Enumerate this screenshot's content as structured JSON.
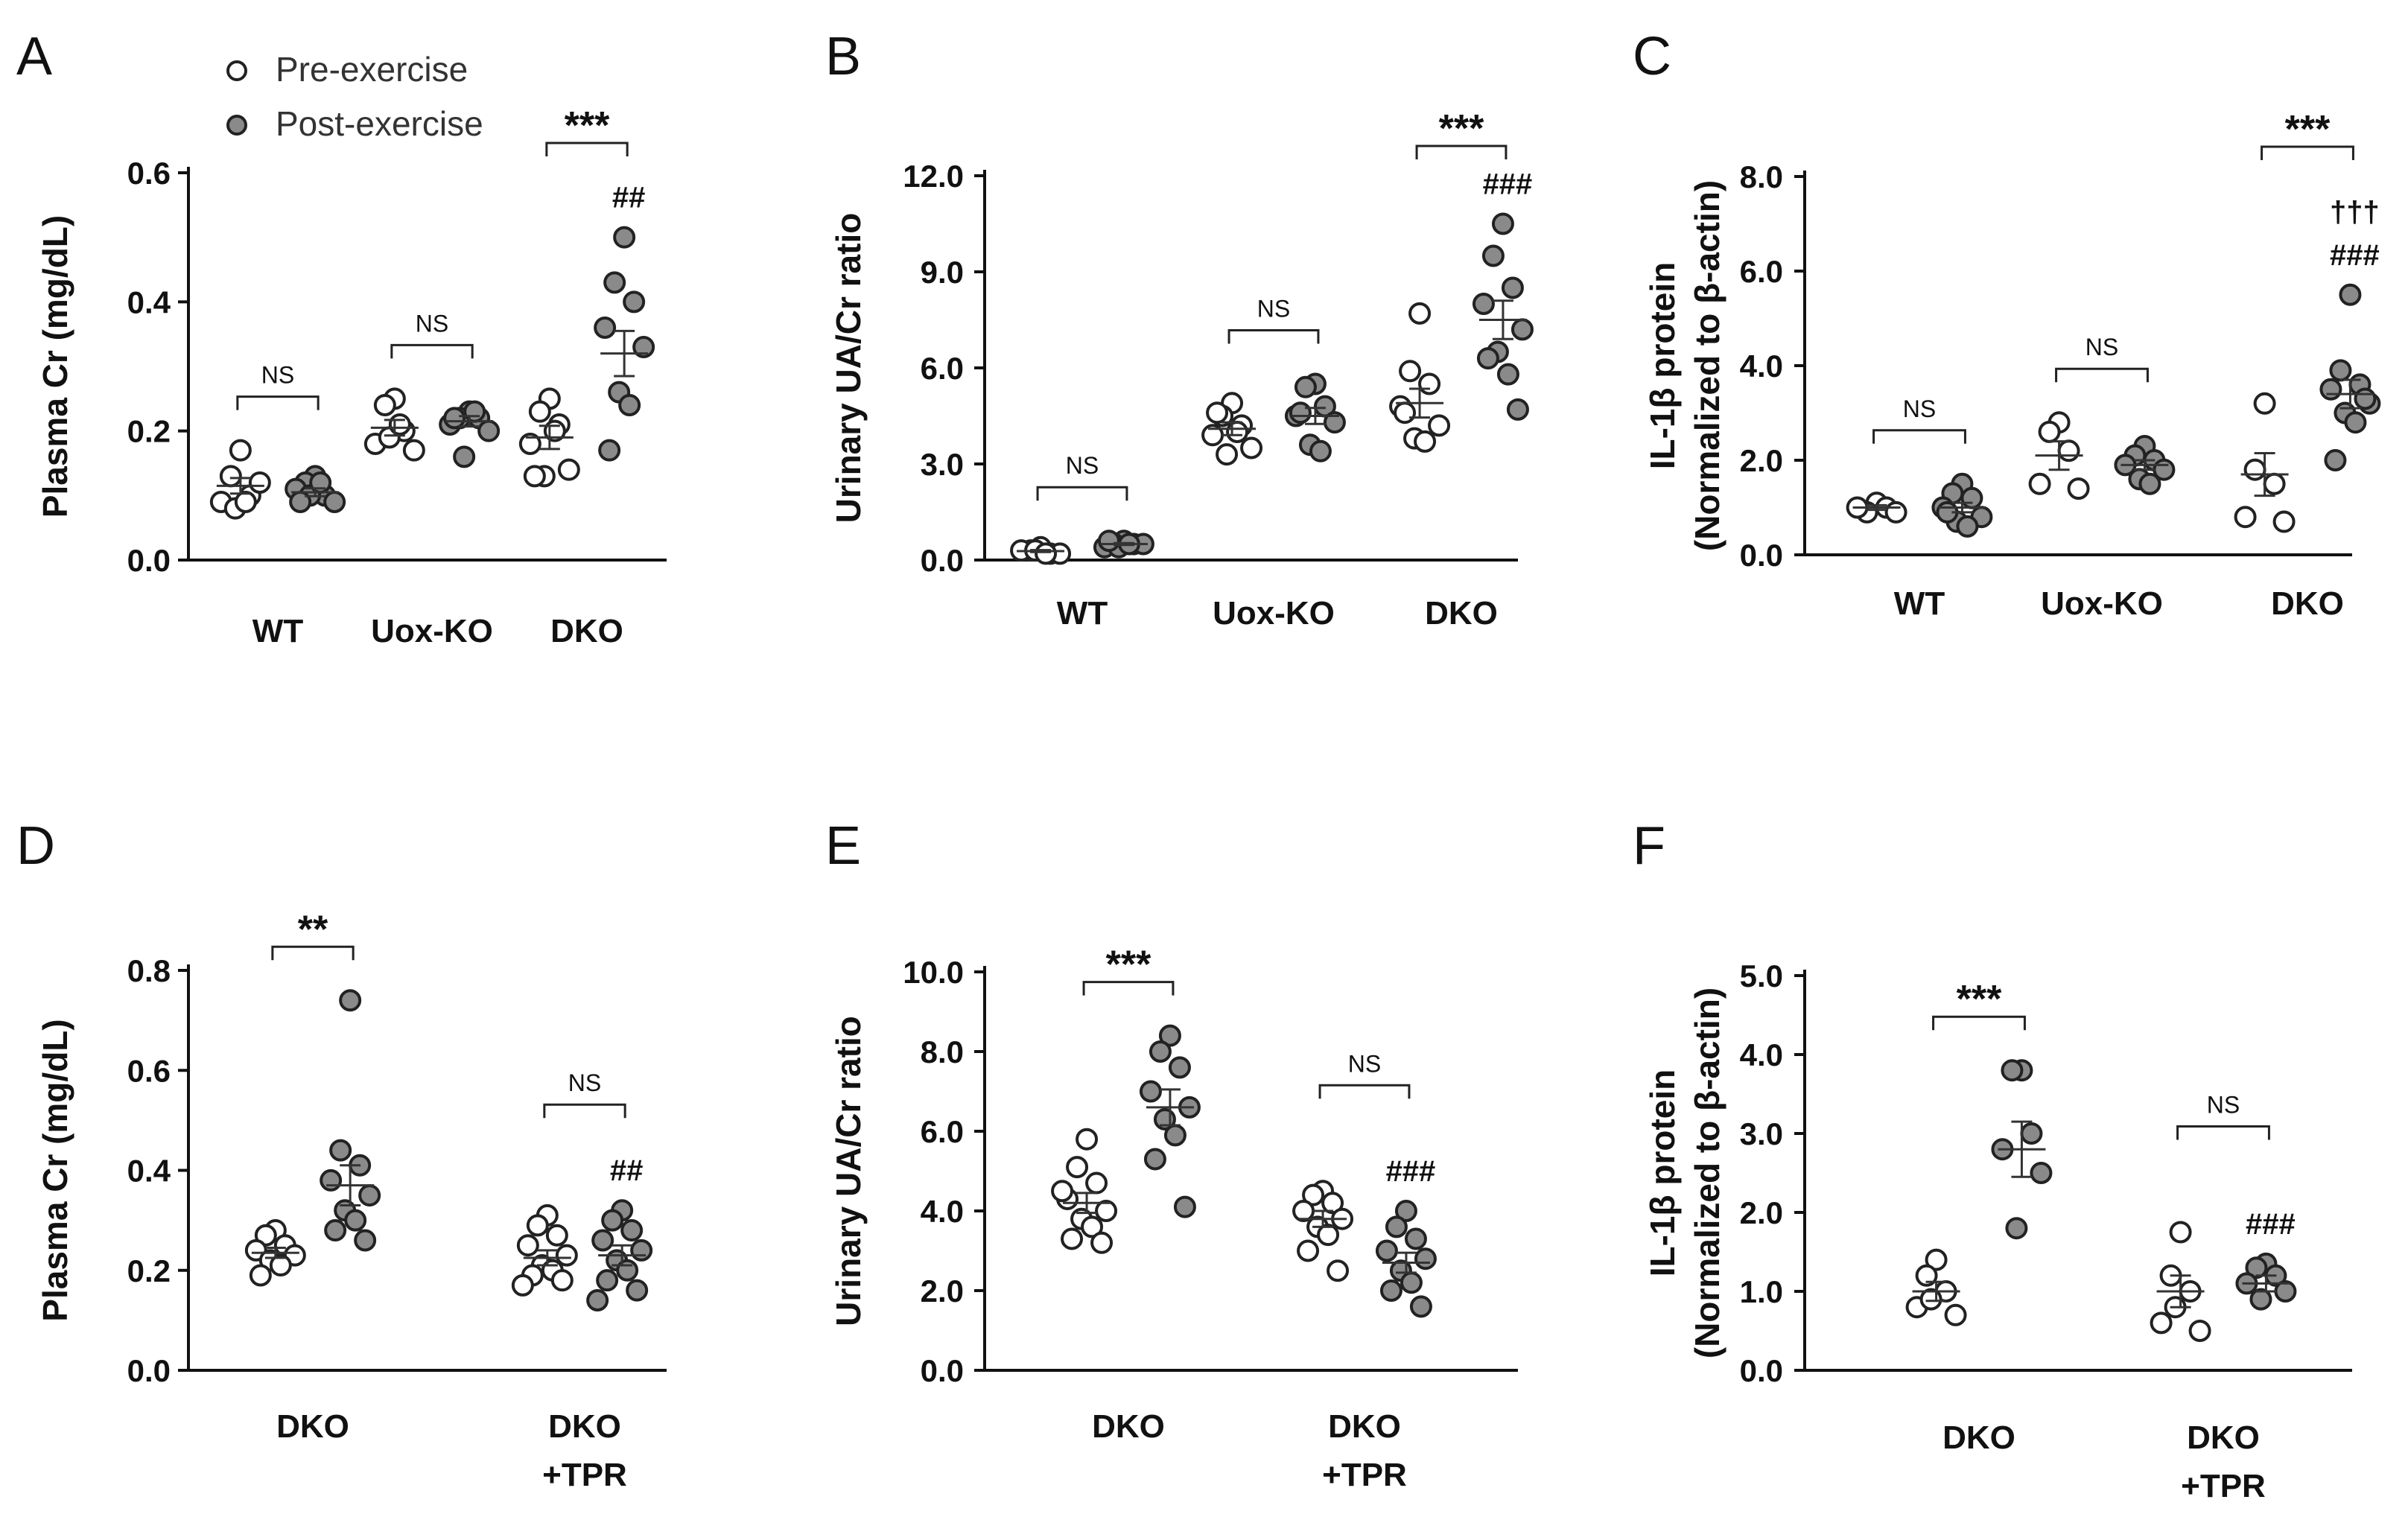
{
  "legend": {
    "pre_label": "Pre-exercise",
    "post_label": "Post-exercise",
    "pre_fill": "#ffffff",
    "post_fill": "#8a8a8a"
  },
  "chart_data": [
    {
      "panel": "A",
      "type": "scatter",
      "ylabel": "Plasma Cr (mg/dL)",
      "ylabel2": "",
      "ylim": [
        0,
        0.6
      ],
      "yticks": [
        "0.0",
        "0.2",
        "0.4",
        "0.6"
      ],
      "groups": [
        {
          "label": "WT",
          "label2": "",
          "pre": [
            0.17,
            0.13,
            0.1,
            0.09,
            0.12,
            0.08,
            0.09
          ],
          "post": [
            0.13,
            0.12,
            0.1,
            0.11,
            0.09,
            0.1,
            0.12,
            0.09
          ],
          "pre_mean": 0.115,
          "pre_sem": 0.012,
          "post_mean": 0.105,
          "post_sem": 0.006,
          "sig": "NS",
          "post_mark": []
        },
        {
          "label": "Uox-KO",
          "label2": "",
          "pre": [
            0.25,
            0.24,
            0.2,
            0.18,
            0.17,
            0.19,
            0.21
          ],
          "post": [
            0.23,
            0.22,
            0.22,
            0.21,
            0.2,
            0.16,
            0.23,
            0.22
          ],
          "pre_mean": 0.205,
          "pre_sem": 0.012,
          "post_mean": 0.215,
          "post_sem": 0.008,
          "sig": "NS",
          "post_mark": []
        },
        {
          "label": "DKO",
          "label2": "",
          "pre": [
            0.25,
            0.23,
            0.21,
            0.18,
            0.14,
            0.13,
            0.2,
            0.13
          ],
          "post": [
            0.5,
            0.43,
            0.4,
            0.36,
            0.33,
            0.26,
            0.24,
            0.17
          ],
          "pre_mean": 0.19,
          "pre_sem": 0.018,
          "post_mean": 0.32,
          "post_sem": 0.035,
          "sig": "***",
          "post_mark": [
            "##"
          ]
        }
      ]
    },
    {
      "panel": "B",
      "type": "scatter",
      "ylabel": "Urinary UA/Cr ratio",
      "ylabel2": "",
      "ylim": [
        0,
        12
      ],
      "yticks": [
        "0.0",
        "3.0",
        "6.0",
        "9.0",
        "12.0"
      ],
      "groups": [
        {
          "label": "WT",
          "label2": "",
          "pre": [
            0.4,
            0.3,
            0.2,
            0.3,
            0.2,
            0.3,
            0.2
          ],
          "post": [
            0.6,
            0.5,
            0.5,
            0.4,
            0.5,
            0.4,
            0.5,
            0.6
          ],
          "pre_mean": 0.28,
          "pre_sem": 0.03,
          "post_mean": 0.5,
          "post_sem": 0.03,
          "sig": "NS",
          "post_mark": []
        },
        {
          "label": "Uox-KO",
          "label2": "",
          "pre": [
            4.9,
            4.5,
            4.2,
            3.9,
            3.5,
            3.3,
            4.0,
            4.6
          ],
          "post": [
            5.5,
            5.4,
            4.8,
            4.5,
            4.3,
            3.6,
            3.4,
            4.6
          ],
          "pre_mean": 4.1,
          "pre_sem": 0.2,
          "post_mean": 4.5,
          "post_sem": 0.25,
          "sig": "NS",
          "post_mark": []
        },
        {
          "label": "DKO",
          "label2": "",
          "pre": [
            7.7,
            5.9,
            5.5,
            4.8,
            4.2,
            3.8,
            3.7,
            4.6
          ],
          "post": [
            10.5,
            9.5,
            8.5,
            8.0,
            7.2,
            6.5,
            5.8,
            6.3,
            4.7
          ],
          "pre_mean": 4.9,
          "pre_sem": 0.45,
          "post_mean": 7.5,
          "post_sem": 0.6,
          "sig": "***",
          "post_mark": [
            "###"
          ]
        }
      ]
    },
    {
      "panel": "C",
      "type": "scatter",
      "ylabel": "IL-1β protein",
      "ylabel2": "(Normalized to β-actin)",
      "ylim": [
        0,
        8
      ],
      "yticks": [
        "0.0",
        "2.0",
        "4.0",
        "6.0",
        "8.0"
      ],
      "groups": [
        {
          "label": "WT",
          "label2": "",
          "pre": [
            1.1,
            0.9,
            1.0,
            1.0,
            0.9
          ],
          "post": [
            1.5,
            1.3,
            1.2,
            1.0,
            0.8,
            0.7,
            0.6,
            0.9
          ],
          "pre_mean": 1.0,
          "pre_sem": 0.05,
          "post_mean": 1.0,
          "post_sem": 0.1,
          "sig": "NS",
          "post_mark": []
        },
        {
          "label": "Uox-KO",
          "label2": "",
          "pre": [
            2.8,
            2.6,
            2.2,
            1.5,
            1.4
          ],
          "post": [
            2.3,
            2.1,
            2.0,
            1.9,
            1.8,
            1.6,
            1.5
          ],
          "pre_mean": 2.1,
          "pre_sem": 0.3,
          "post_mean": 1.9,
          "post_sem": 0.1,
          "sig": "NS",
          "post_mark": []
        },
        {
          "label": "DKO",
          "label2": "",
          "pre": [
            3.2,
            1.8,
            1.5,
            0.8,
            0.7
          ],
          "post": [
            5.5,
            3.9,
            3.6,
            3.5,
            3.2,
            3.0,
            2.8,
            2.0,
            3.3
          ],
          "pre_mean": 1.7,
          "pre_sem": 0.45,
          "post_mean": 3.4,
          "post_sem": 0.3,
          "sig": "***",
          "post_mark": [
            "†††",
            "###"
          ]
        }
      ]
    },
    {
      "panel": "D",
      "type": "scatter",
      "ylabel": "Plasma Cr (mg/dL)",
      "ylabel2": "",
      "ylim": [
        0,
        0.8
      ],
      "yticks": [
        "0.0",
        "0.2",
        "0.4",
        "0.6",
        "0.8"
      ],
      "groups": [
        {
          "label": "DKO",
          "label2": "",
          "pre": [
            0.28,
            0.27,
            0.25,
            0.24,
            0.23,
            0.22,
            0.21,
            0.19
          ],
          "post": [
            0.74,
            0.44,
            0.41,
            0.38,
            0.35,
            0.32,
            0.3,
            0.28,
            0.26
          ],
          "pre_mean": 0.235,
          "pre_sem": 0.01,
          "post_mean": 0.37,
          "post_sem": 0.04,
          "sig": "**",
          "post_mark": []
        },
        {
          "label": "DKO",
          "label2": "+TPR",
          "pre": [
            0.31,
            0.29,
            0.27,
            0.25,
            0.23,
            0.21,
            0.2,
            0.19,
            0.18,
            0.17
          ],
          "post": [
            0.32,
            0.3,
            0.28,
            0.26,
            0.24,
            0.22,
            0.2,
            0.18,
            0.16,
            0.14
          ],
          "pre_mean": 0.225,
          "pre_sem": 0.015,
          "post_mean": 0.23,
          "post_sem": 0.02,
          "sig": "NS",
          "post_mark": [
            "##"
          ]
        }
      ]
    },
    {
      "panel": "E",
      "type": "scatter",
      "ylabel": "Urinary UA/Cr ratio",
      "ylabel2": "",
      "ylim": [
        0,
        10
      ],
      "yticks": [
        "0.0",
        "2.0",
        "4.0",
        "6.0",
        "8.0",
        "10.0"
      ],
      "groups": [
        {
          "label": "DKO",
          "label2": "",
          "pre": [
            5.8,
            5.1,
            4.7,
            4.3,
            4.0,
            3.8,
            3.6,
            3.3,
            3.2,
            4.5
          ],
          "post": [
            8.4,
            8.0,
            7.6,
            7.0,
            6.6,
            6.3,
            5.9,
            5.3,
            4.1
          ],
          "pre_mean": 4.2,
          "pre_sem": 0.25,
          "post_mean": 6.6,
          "post_sem": 0.45,
          "sig": "***",
          "post_mark": []
        },
        {
          "label": "DKO",
          "label2": "+TPR",
          "pre": [
            4.5,
            4.4,
            4.2,
            4.0,
            3.8,
            3.6,
            3.4,
            3.0,
            2.5
          ],
          "post": [
            4.0,
            3.6,
            3.3,
            3.0,
            2.8,
            2.5,
            2.2,
            2.0,
            1.6
          ],
          "pre_mean": 3.8,
          "pre_sem": 0.2,
          "post_mean": 2.7,
          "post_sem": 0.25,
          "sig": "NS",
          "post_mark": [
            "###"
          ]
        }
      ]
    },
    {
      "panel": "F",
      "type": "scatter",
      "ylabel": "IL-1β protein",
      "ylabel2": "(Normalized to β-actin)",
      "ylim": [
        0,
        5
      ],
      "yticks": [
        "0.0",
        "1.0",
        "2.0",
        "3.0",
        "4.0",
        "5.0"
      ],
      "groups": [
        {
          "label": "DKO",
          "label2": "",
          "pre": [
            1.4,
            1.2,
            1.0,
            0.8,
            0.7,
            0.9
          ],
          "post": [
            3.8,
            3.8,
            3.0,
            2.8,
            2.5,
            1.8
          ],
          "pre_mean": 1.0,
          "pre_sem": 0.12,
          "post_mean": 2.8,
          "post_sem": 0.35,
          "sig": "***",
          "post_mark": []
        },
        {
          "label": "DKO",
          "label2": "+TPR",
          "pre": [
            1.75,
            1.2,
            1.0,
            0.6,
            0.5,
            0.8
          ],
          "post": [
            1.35,
            1.3,
            1.2,
            1.1,
            1.0,
            0.9
          ],
          "pre_mean": 1.0,
          "pre_sem": 0.2,
          "post_mean": 1.1,
          "post_sem": 0.1,
          "sig": "NS",
          "post_mark": [
            "###"
          ]
        }
      ]
    }
  ]
}
